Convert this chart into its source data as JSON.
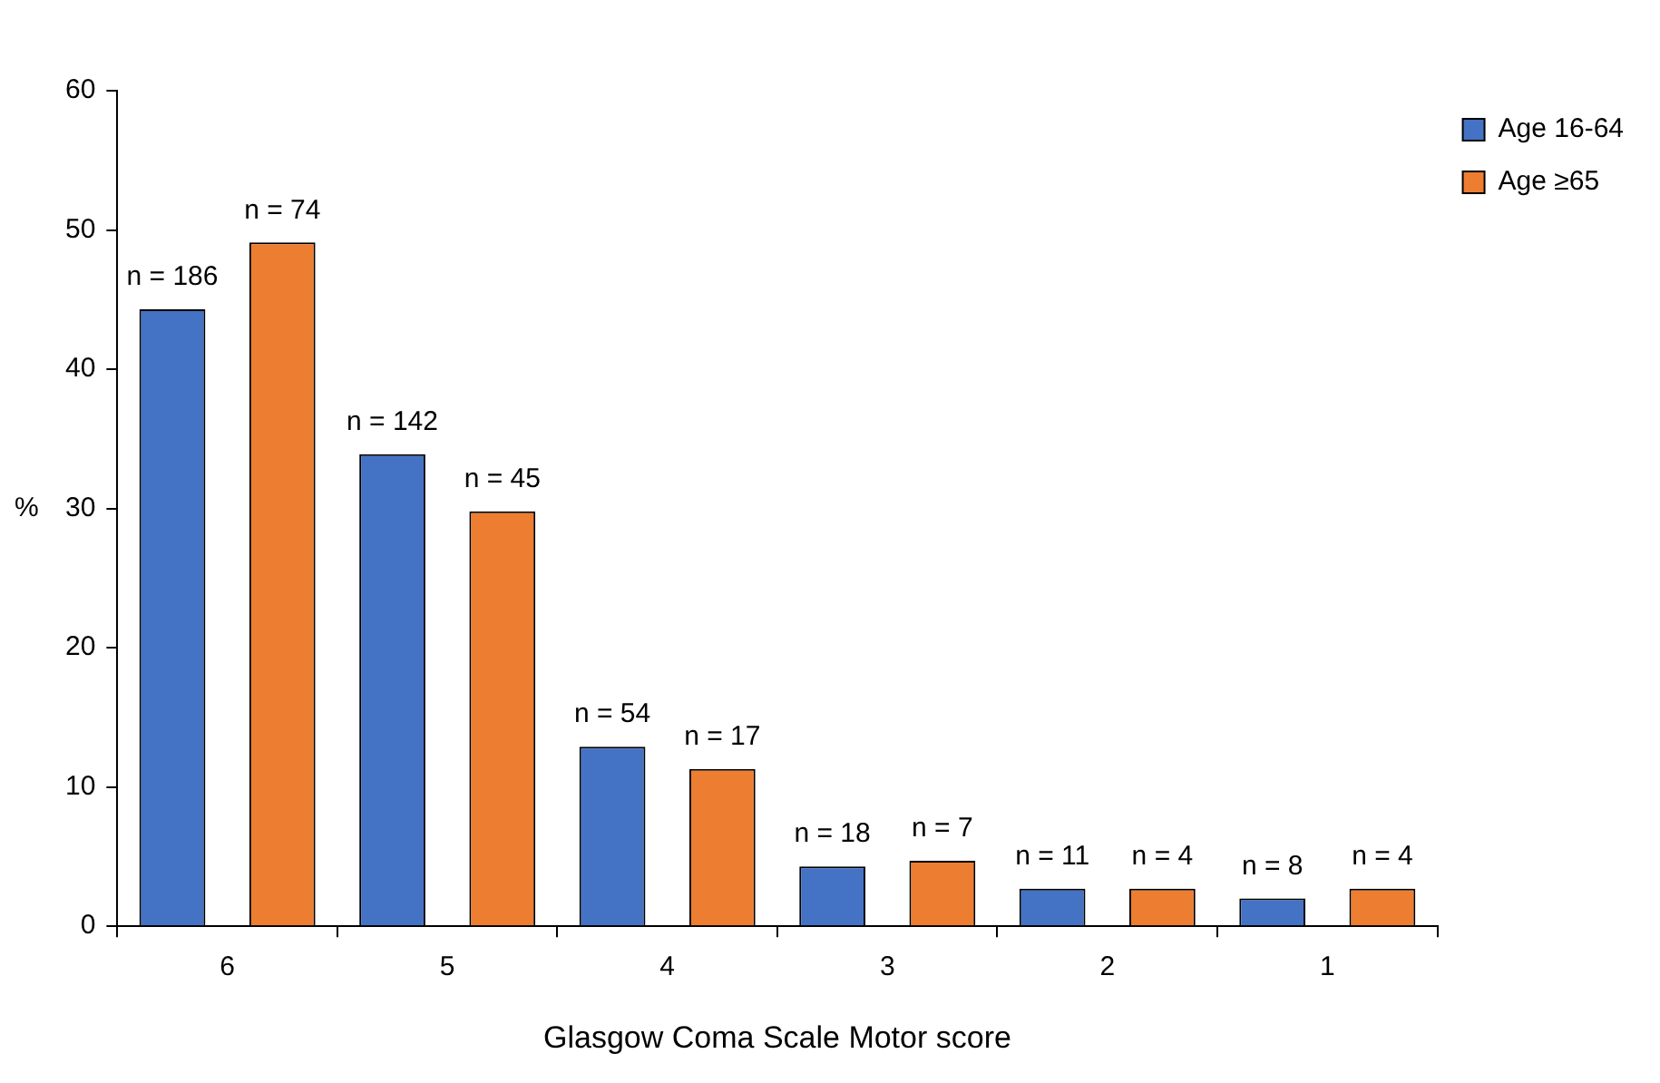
{
  "chart_data": {
    "type": "bar",
    "xlabel": "Glasgow Coma Scale Motor score",
    "ylabel": "%",
    "categories": [
      "6",
      "5",
      "4",
      "3",
      "2",
      "1"
    ],
    "series": [
      {
        "name": "Age 16-64",
        "color": "#4472c4",
        "values": [
          44.3,
          33.9,
          12.9,
          4.3,
          2.7,
          2.0
        ]
      },
      {
        "name": "Age ≥65",
        "color": "#ed7d31",
        "values": [
          49.1,
          29.8,
          11.3,
          4.7,
          2.7,
          2.7
        ]
      }
    ],
    "annotations": [
      "n = 186",
      "n = 142",
      "n = 54",
      "n = 18",
      "n = 11",
      "n = 8",
      "n = 74",
      "n = 45",
      "n = 17",
      "n = 7",
      "n = 4",
      "n = 4"
    ],
    "ylim": [
      0,
      60
    ],
    "yticks": [
      0,
      10,
      20,
      30,
      40,
      50,
      60
    ],
    "grid": false,
    "legend": "top right"
  }
}
